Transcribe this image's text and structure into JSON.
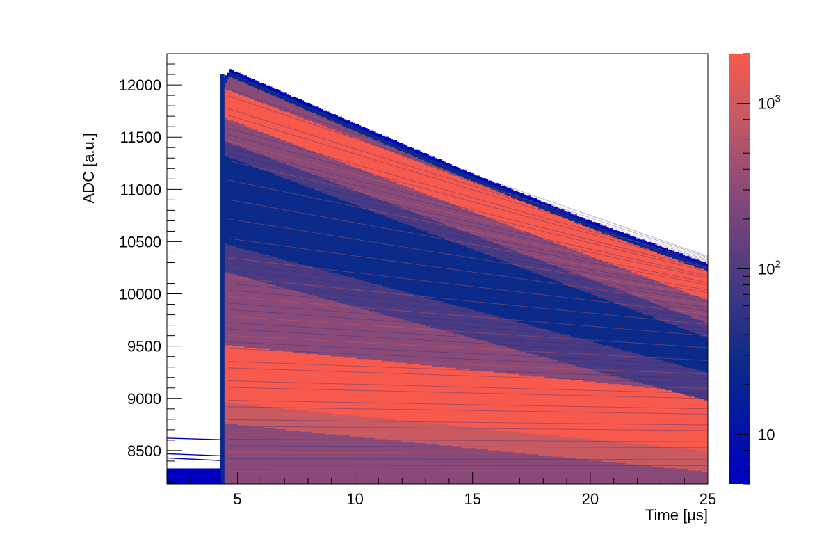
{
  "chart_data": {
    "type": "heatmap",
    "xlabel": "Time [μs]",
    "ylabel": "ADC [a.u.]",
    "xlim": [
      2.0,
      25.0
    ],
    "ylim": [
      8180,
      12300
    ],
    "x_ticks": [
      5,
      10,
      15,
      20,
      25
    ],
    "x_tick_labels": [
      "5",
      "10",
      "15",
      "20",
      "25"
    ],
    "y_ticks": [
      8500,
      9000,
      9500,
      10000,
      10500,
      11000,
      11500,
      12000
    ],
    "y_tick_labels": [
      "8500",
      "9000",
      "9500",
      "10000",
      "10500",
      "11000",
      "11500",
      "12000"
    ],
    "z_scale": "log",
    "zlim": [
      5,
      2000
    ],
    "z_ticks": [
      10,
      100,
      1000
    ],
    "z_tick_labels": [
      {
        "base": "10",
        "exp": ""
      },
      {
        "base": "10",
        "exp": "2"
      },
      {
        "base": "10",
        "exp": "3"
      }
    ],
    "colormap": [
      "#0000c0",
      "#0a2a8a",
      "#4a3a82",
      "#8a4a78",
      "#c85a62",
      "#f75a4c"
    ],
    "grid": false,
    "pulse": {
      "baseline_end_us": 4.3,
      "peak_time_us": 4.7,
      "baseline_adc": [
        8180,
        8330
      ],
      "baseline_stray_traces_adc": [
        8430,
        8470,
        8620
      ],
      "max_envelope": [
        [
          4.4,
          12050
        ],
        [
          4.7,
          12150
        ],
        [
          10,
          11630
        ],
        [
          15,
          11150
        ],
        [
          20,
          10700
        ],
        [
          25,
          10290
        ]
      ],
      "dense_bands": [
        {
          "label": "upper",
          "adc_at_5us": 11800,
          "adc_at_25us": 10100,
          "density": "high"
        },
        {
          "label": "middle",
          "adc_at_5us": 10700,
          "adc_at_25us": 9500,
          "density": "low"
        },
        {
          "label": "lower",
          "adc_at_5us": 9200,
          "adc_at_25us": 8750,
          "density": "high"
        }
      ]
    }
  }
}
